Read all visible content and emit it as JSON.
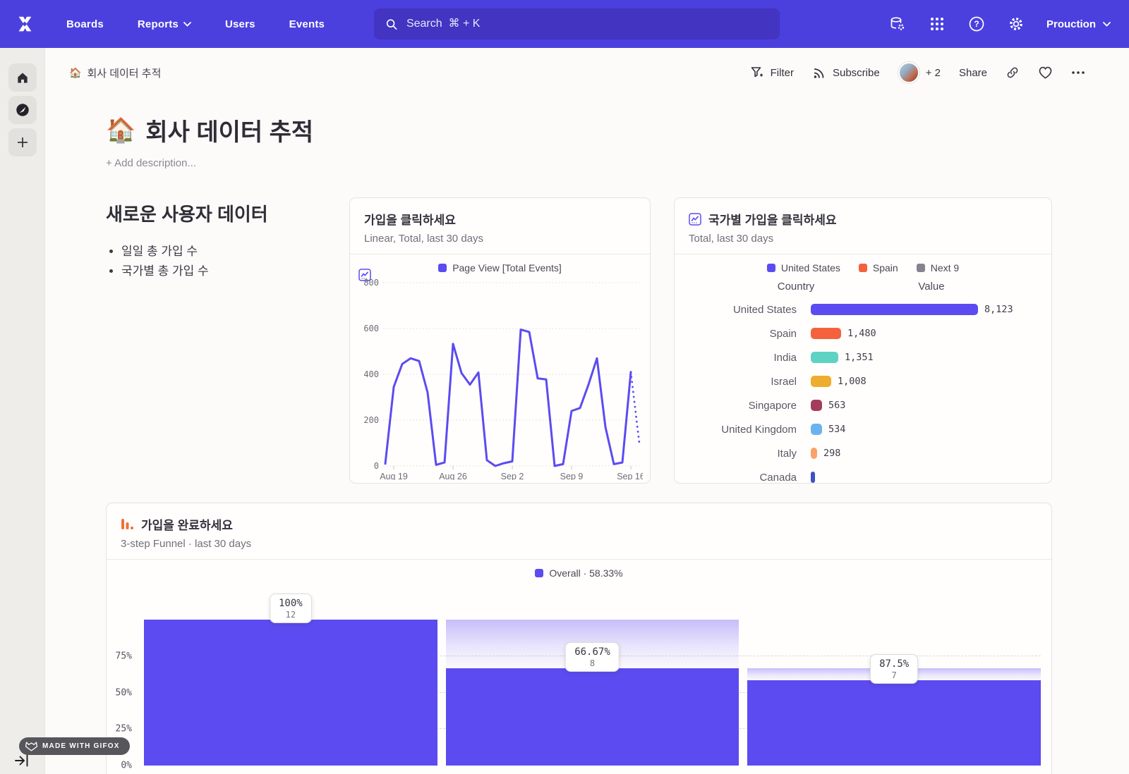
{
  "colors": {
    "nav_bg": "#4b40de",
    "search_bg": "#4334c2",
    "accent_purple": "#5b4bf1",
    "funnel_icon_orange": "#ef7137",
    "rail_bg": "#efedea",
    "card_border": "#e5e3df"
  },
  "nav": {
    "links": [
      {
        "label": "Boards"
      },
      {
        "label": "Reports",
        "has_chevron": true
      },
      {
        "label": "Users"
      },
      {
        "label": "Events"
      }
    ],
    "search_placeholder": "Search  ⌘ + K",
    "project": "Prouction"
  },
  "toolbar": {
    "breadcrumb_icon": "🏠",
    "breadcrumb": "회사 데이터 추적",
    "filter": "Filter",
    "subscribe": "Subscribe",
    "avatar_more": "+ 2",
    "share": "Share"
  },
  "page": {
    "icon": "🏠",
    "title": "회사 데이터 추적",
    "add_description": "+ Add description..."
  },
  "text_block": {
    "heading": "새로운 사용자 데이터",
    "bullets": [
      "일일 총 가입 수",
      "국가별 총 가입 수"
    ]
  },
  "chart_data": [
    {
      "type": "line",
      "title": "가입을 클릭하세요",
      "subtitle": "Linear, Total, last 30 days",
      "legend": "Page View [Total Events]",
      "line_color": "#5b4bf1",
      "ylim": [
        0,
        800
      ],
      "y_ticks": [
        0,
        200,
        400,
        600,
        800
      ],
      "x_tick_labels": [
        "Aug 19",
        "Aug 26",
        "Sep 2",
        "Sep 9",
        "Sep 16"
      ],
      "x_tick_indices": [
        1,
        8,
        15,
        22,
        29
      ],
      "series": [
        {
          "name": "Page View [Total Events]",
          "values": [
            10,
            345,
            445,
            470,
            458,
            320,
            5,
            15,
            533,
            406,
            355,
            408,
            25,
            0,
            12,
            20,
            595,
            585,
            382,
            378,
            0,
            8,
            240,
            253,
            355,
            470,
            170,
            8,
            15,
            410
          ]
        }
      ],
      "dotted_tail_value": 100,
      "grid": "horizontal-dotted"
    },
    {
      "type": "bar",
      "title": "국가별 가입을 클릭하세요",
      "subtitle": "Total, last 30 days",
      "legend": [
        {
          "label": "United States",
          "color": "#5b4bf1"
        },
        {
          "label": "Spain",
          "color": "#f4623d"
        },
        {
          "label": "Next 9",
          "color": "#85838e"
        }
      ],
      "columns": [
        "Country",
        "Value"
      ],
      "max": 8123,
      "rows": [
        {
          "country": "United States",
          "value": "8,123",
          "num": 8123,
          "color": "#5b4bf1"
        },
        {
          "country": "Spain",
          "value": "1,480",
          "num": 1480,
          "color": "#f4623d"
        },
        {
          "country": "India",
          "value": "1,351",
          "num": 1351,
          "color": "#5fd3c3"
        },
        {
          "country": "Israel",
          "value": "1,008",
          "num": 1008,
          "color": "#eead2e"
        },
        {
          "country": "Singapore",
          "value": "563",
          "num": 563,
          "color": "#a43c5c"
        },
        {
          "country": "United Kingdom",
          "value": "534",
          "num": 534,
          "color": "#6cb2ee"
        },
        {
          "country": "Italy",
          "value": "298",
          "num": 298,
          "color": "#f8a26a"
        },
        {
          "country": "Canada",
          "value": "",
          "num": 150,
          "color": "#3d52c4",
          "clipped": true
        }
      ]
    },
    {
      "type": "funnel",
      "title": "가입을 완료하세요",
      "subtitle": "3-step Funnel · last 30 days",
      "legend": "Overall · 58.33%",
      "bar_color": "#5b4bf1",
      "y_ticks": [
        {
          "label": "75%",
          "pct": 75
        },
        {
          "label": "50%",
          "pct": 50
        },
        {
          "label": "25%",
          "pct": 25
        },
        {
          "label": "0%",
          "pct": 0
        }
      ],
      "steps": [
        {
          "pct": 100,
          "prev_pct": 100,
          "pct_label": "100%",
          "count": 12
        },
        {
          "pct": 66.67,
          "prev_pct": 100,
          "pct_label": "66.67%",
          "count": 8
        },
        {
          "pct": 58.33,
          "prev_pct": 66.67,
          "pct_label": "87.5%",
          "count": 7
        }
      ]
    }
  ],
  "badge": {
    "label": "MADE WITH GIFOX"
  }
}
